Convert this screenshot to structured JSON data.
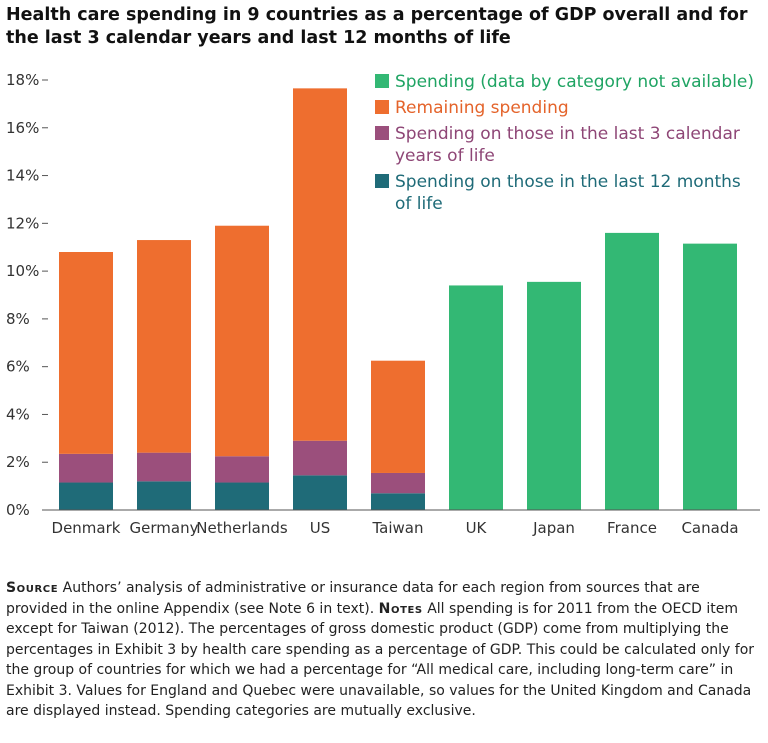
{
  "chart_data": {
    "type": "bar",
    "stacked": true,
    "title": "Health care spending in 9 countries as a percentage of GDP overall and for the last 3 calendar years and last 12 months of life",
    "xlabel": "",
    "ylabel": "",
    "ylim": [
      0,
      18
    ],
    "yticks": [
      0,
      2,
      4,
      6,
      8,
      10,
      12,
      14,
      16,
      18
    ],
    "ytick_labels": [
      "0%",
      "2%",
      "4%",
      "6%",
      "8%",
      "10%",
      "12%",
      "14%",
      "16%",
      "18%"
    ],
    "categories": [
      "Denmark",
      "Germany",
      "Netherlands",
      "US",
      "Taiwan",
      "UK",
      "Japan",
      "France",
      "Canada"
    ],
    "series": [
      {
        "name": "Spending on those in the last 12 months of life",
        "color": "#1f6b78",
        "values": [
          1.15,
          1.2,
          1.15,
          1.45,
          0.7,
          null,
          null,
          null,
          null
        ]
      },
      {
        "name": "Spending on those in the last 3 calendar years of life",
        "color": "#9b4f7c",
        "values": [
          1.2,
          1.2,
          1.1,
          1.45,
          0.85,
          null,
          null,
          null,
          null
        ]
      },
      {
        "name": "Remaining spending",
        "color": "#ee6e2f",
        "values": [
          8.45,
          8.9,
          9.65,
          14.75,
          4.7,
          null,
          null,
          null,
          null
        ]
      },
      {
        "name": "Spending (data by category not available)",
        "color": "#33b874",
        "values": [
          null,
          null,
          null,
          null,
          null,
          9.4,
          9.55,
          11.6,
          11.15
        ]
      }
    ],
    "legend": {
      "position": "top-right",
      "entries": [
        {
          "lines": [
            "Spending (data by category not available)"
          ],
          "color": "#33b874",
          "text_color": "#1fa463"
        },
        {
          "lines": [
            "Remaining spending"
          ],
          "color": "#ee6e2f",
          "text_color": "#e4632a"
        },
        {
          "lines": [
            "Spending on those in the last 3 calendar",
            "years of life"
          ],
          "color": "#9b4f7c",
          "text_color": "#8e4676"
        },
        {
          "lines": [
            "Spending on those in the last 12 months",
            "of life"
          ],
          "color": "#1f6b78",
          "text_color": "#1f6b78"
        }
      ]
    }
  },
  "notes": {
    "source_label": "Source",
    "source_text": "Authors’ analysis of administrative or insurance data for each region from sources that are provided in the online Appendix (see Note 6 in text).",
    "notes_label": "Notes",
    "notes_text": "All spending is for 2011 from the OECD item except for Taiwan (2012). The percentages of gross domestic product (GDP) come from multiplying the percentages in Exhibit 3 by health care spending as a percentage of GDP. This could be calculated only for the group of countries for which we had a percentage for “All medical care, including long-term care” in Exhibit 3. Values for England and Quebec were unavailable, so values for the United Kingdom and Canada are displayed instead. Spending categories are mutually exclusive."
  }
}
